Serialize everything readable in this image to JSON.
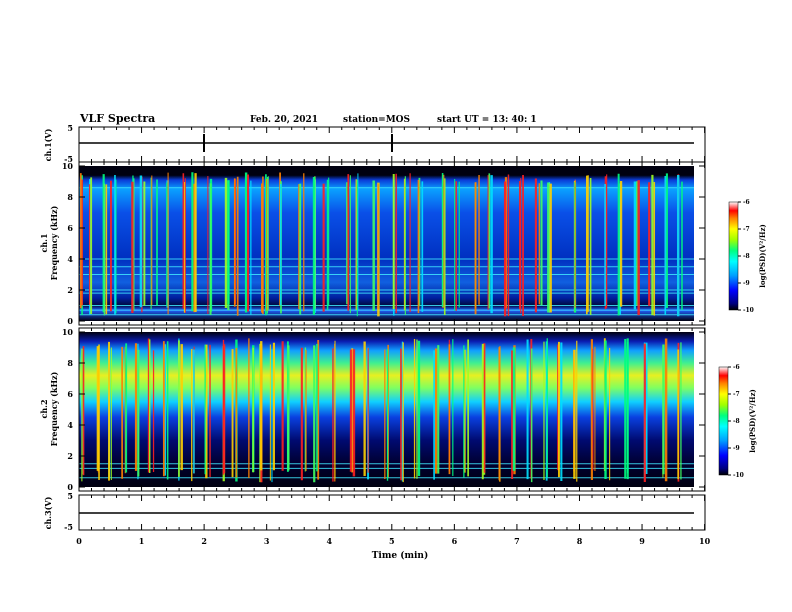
{
  "header": {
    "title": "VLF Spectra",
    "date": "Feb. 20, 2021",
    "station": "station=MOS",
    "start": "start  UT  =    13: 40: 1"
  },
  "chart_data": [
    {
      "id": "ch1-waveform",
      "type": "line",
      "ylabel": "ch.1(V)",
      "ylim": [
        -5,
        5
      ],
      "y_ticks": [
        "5",
        "-5"
      ],
      "xlim": [
        0,
        10
      ],
      "series": [
        {
          "x": [
            0,
            9.85
          ],
          "y": [
            0,
            0
          ]
        }
      ],
      "spikes_min": [
        2.0,
        5.0
      ]
    },
    {
      "id": "ch1-spectrogram",
      "type": "heatmap",
      "ylabel": "ch.1\nFrequency (kHz)",
      "ylim": [
        0,
        10
      ],
      "y_ticks": [
        "0",
        "2",
        "4",
        "6",
        "8",
        "10"
      ],
      "xlim": [
        0,
        10
      ],
      "colorbar": {
        "label": "log(PSD)(V²/Hz)",
        "range": [
          -10,
          -6
        ],
        "ticks": [
          "-6",
          "-7",
          "-8",
          "-9",
          "-10"
        ]
      },
      "background_band_khz": [
        0.6,
        9.3
      ],
      "horizontal_lines_khz": [
        0.4,
        0.7,
        1.0,
        1.8,
        2.0,
        3.0,
        3.5,
        4.0,
        8.6
      ],
      "impulse_times_min": [
        0.05,
        0.2,
        0.42,
        0.55,
        0.83,
        1.0,
        1.2,
        1.45,
        1.7,
        1.85,
        2.1,
        2.35,
        2.5,
        2.7,
        2.95,
        3.05,
        3.25,
        3.55,
        3.75,
        3.95,
        4.3,
        4.45,
        4.75,
        5.05,
        5.25,
        5.45,
        5.85,
        6.05,
        6.35,
        6.55,
        6.85,
        7.05,
        7.35,
        7.55,
        7.9,
        8.15,
        8.45,
        8.65,
        8.9,
        9.15,
        9.4,
        9.6
      ]
    },
    {
      "id": "ch2-spectrogram",
      "type": "heatmap",
      "ylabel": "ch.2\nFrequency (kHz)",
      "ylim": [
        0,
        10
      ],
      "y_ticks": [
        "0",
        "2",
        "4",
        "6",
        "8",
        "10"
      ],
      "xlim": [
        0,
        10
      ],
      "colorbar": {
        "label": "log(PSD)(V²/Hz)",
        "range": [
          -10,
          -6
        ],
        "ticks": [
          "-6",
          "-7",
          "-8",
          "-9",
          "-10"
        ]
      },
      "emission_band_khz": [
        5.0,
        8.5
      ],
      "horizontal_lines_khz": [
        0.6,
        1.2,
        1.5
      ],
      "impulse_times_min": [
        0.08,
        0.28,
        0.5,
        0.72,
        0.95,
        1.15,
        1.4,
        1.62,
        1.8,
        2.05,
        2.3,
        2.48,
        2.75,
        2.9,
        3.1,
        3.3,
        3.6,
        3.8,
        4.05,
        4.35,
        4.6,
        4.9,
        5.15,
        5.4,
        5.7,
        5.95,
        6.2,
        6.45,
        6.7,
        6.95,
        7.2,
        7.45,
        7.7,
        7.95,
        8.2,
        8.45,
        8.75,
        9.05,
        9.35,
        9.6
      ]
    },
    {
      "id": "ch3-waveform",
      "type": "line",
      "ylabel": "ch.3(V)",
      "ylim": [
        -5,
        5
      ],
      "y_ticks": [
        "5",
        "-5"
      ],
      "xlim": [
        0,
        10
      ],
      "series": [
        {
          "x": [
            0,
            9.85
          ],
          "y": [
            0,
            0
          ]
        }
      ]
    }
  ],
  "x_axis": {
    "xlabel": "Time  (min)",
    "ticks": [
      "0",
      "1",
      "2",
      "3",
      "4",
      "5",
      "6",
      "7",
      "8",
      "9",
      "10"
    ]
  }
}
